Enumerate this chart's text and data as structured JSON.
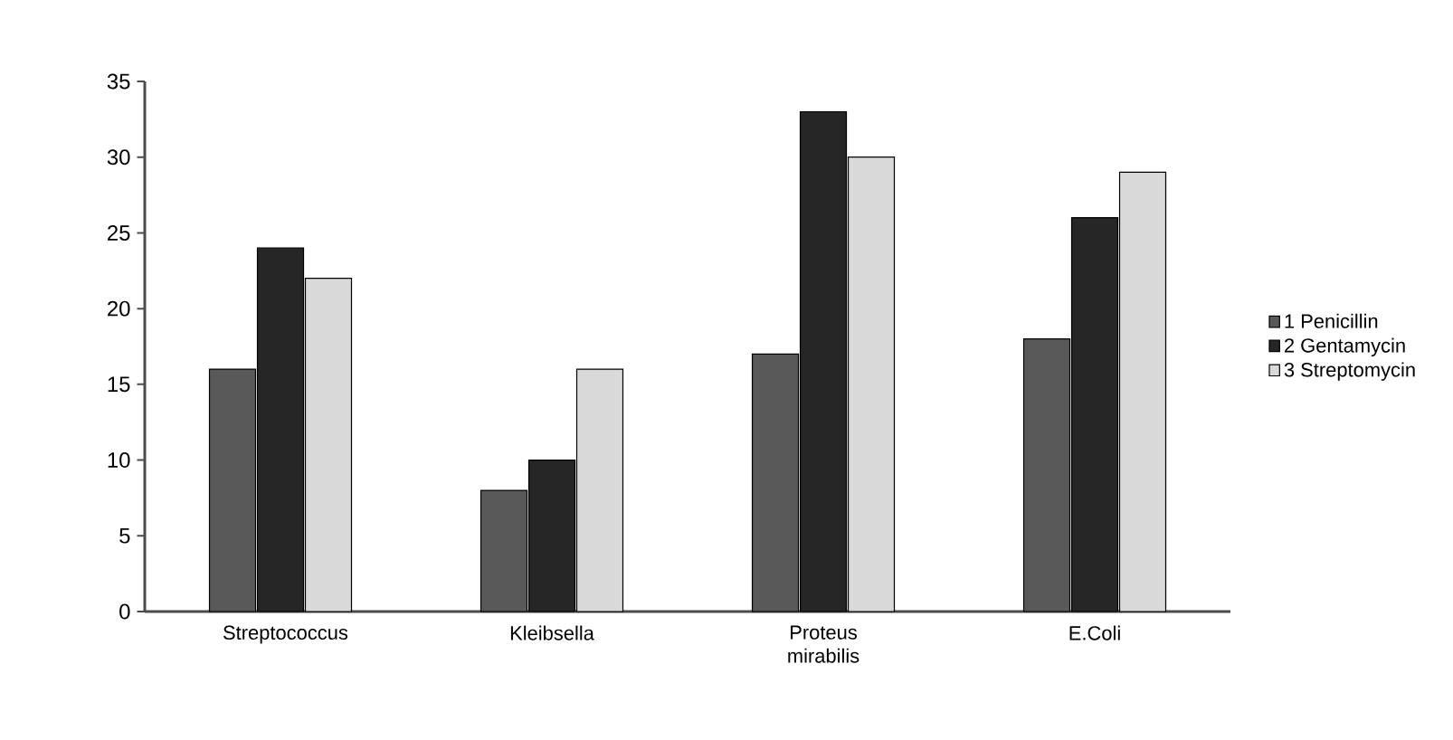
{
  "chart_data": {
    "type": "bar",
    "categories": [
      "Streptococcus",
      "Kleibsella",
      "Proteus mirabilis",
      "E.Coli"
    ],
    "series": [
      {
        "name": "1 Penicillin",
        "color": "#595959",
        "values": [
          16,
          8,
          17,
          18
        ]
      },
      {
        "name": "2 Gentamycin",
        "color": "#262626",
        "values": [
          24,
          10,
          33,
          26
        ]
      },
      {
        "name": "3 Streptomycin",
        "color": "#d9d9d9",
        "values": [
          22,
          16,
          30,
          29
        ]
      }
    ],
    "ylim": [
      0,
      35
    ],
    "yticks": [
      0,
      5,
      10,
      15,
      20,
      25,
      30,
      35
    ],
    "grid": false,
    "legend": "right"
  }
}
